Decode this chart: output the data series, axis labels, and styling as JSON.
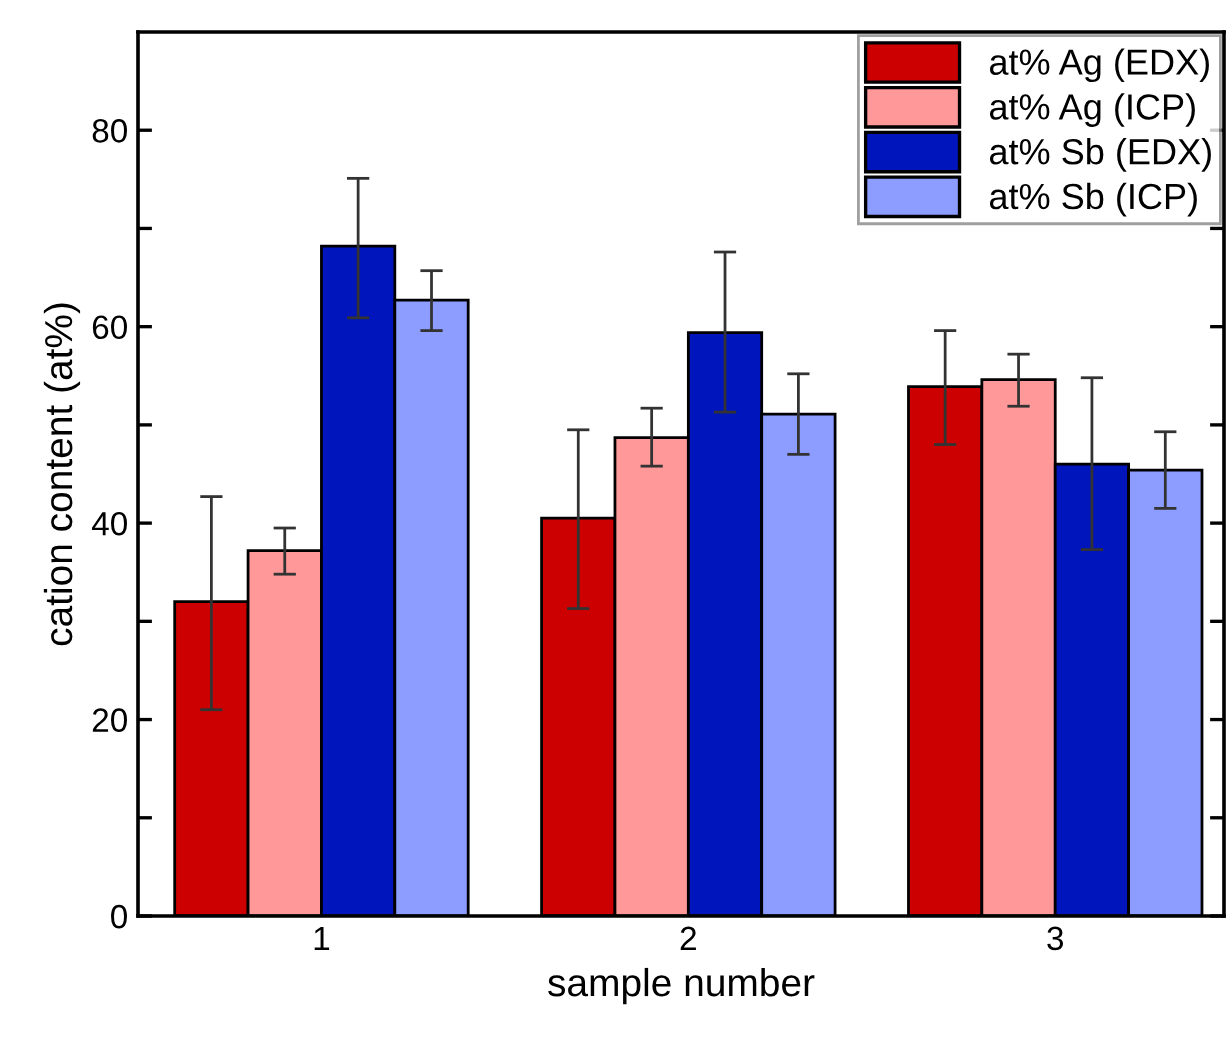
{
  "chart_data": {
    "type": "bar",
    "xlabel": "sample number",
    "ylabel": "cation content (at%)",
    "categories": [
      "1",
      "2",
      "3"
    ],
    "series": [
      {
        "name": "at% Ag (EDX)",
        "color": "#cc0000",
        "values": [
          32.0,
          40.5,
          53.9
        ],
        "errors": [
          [
            21.0,
            42.7
          ],
          [
            31.3,
            49.5
          ],
          [
            48.0,
            59.6
          ]
        ]
      },
      {
        "name": "at% Ag (ICP)",
        "color": "#ff9999",
        "values": [
          37.2,
          48.7,
          54.6
        ],
        "errors": [
          [
            34.8,
            39.5
          ],
          [
            45.8,
            51.7
          ],
          [
            51.9,
            57.2
          ]
        ]
      },
      {
        "name": "at% Sb (EDX)",
        "color": "#0015bb",
        "values": [
          68.2,
          59.4,
          46.0
        ],
        "errors": [
          [
            60.9,
            75.1
          ],
          [
            51.3,
            67.6
          ],
          [
            37.3,
            54.8
          ]
        ]
      },
      {
        "name": "at% Sb (ICP)",
        "color": "#8c9cff",
        "values": [
          62.7,
          51.1,
          45.4
        ],
        "errors": [
          [
            59.6,
            65.7
          ],
          [
            47.0,
            55.2
          ],
          [
            41.5,
            49.3
          ]
        ]
      }
    ],
    "ylim": [
      0,
      90
    ],
    "yticks": [
      0,
      {
        "value": 10,
        "label": null
      },
      20,
      {
        "value": 30,
        "label": null
      },
      40,
      {
        "value": 50,
        "label": null
      },
      60,
      {
        "value": 70,
        "label": null
      },
      80
    ],
    "grid": false,
    "legend": "top right"
  }
}
